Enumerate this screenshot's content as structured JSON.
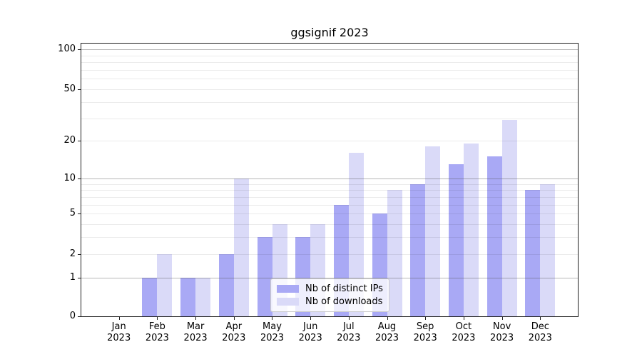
{
  "chart_data": {
    "type": "bar",
    "title": "ggsignif 2023",
    "categories": [
      "Jan 2023",
      "Feb 2023",
      "Mar 2023",
      "Apr 2023",
      "May 2023",
      "Jun 2023",
      "Jul 2023",
      "Aug 2023",
      "Sep 2023",
      "Oct 2023",
      "Nov 2023",
      "Dec 2023"
    ],
    "series": [
      {
        "name": "Nb of distinct IPs",
        "color": "#a9a9f5",
        "values": [
          0,
          1,
          1,
          2,
          3,
          3,
          6,
          5,
          9,
          13,
          15,
          8
        ]
      },
      {
        "name": "Nb of downloads",
        "color": "#dadaf8",
        "values": [
          0,
          2,
          1,
          10,
          4,
          4,
          16,
          8,
          18,
          19,
          29,
          9
        ]
      }
    ],
    "xlabel": "",
    "ylabel": "",
    "yscale": "log1p",
    "ylim": [
      0,
      113
    ],
    "yticks": [
      0,
      1,
      2,
      5,
      10,
      20,
      50,
      100
    ],
    "major_gridlines": [
      1,
      10,
      100
    ],
    "minor_gridlines": [
      2,
      3,
      4,
      5,
      6,
      7,
      8,
      9,
      20,
      30,
      40,
      50,
      60,
      70,
      80,
      90
    ],
    "grid": true,
    "legend_position": "lower-center",
    "colors": {
      "axis": "#1f1f1f",
      "major_grid": "#b5b5b5",
      "minor_grid": "#ebebeb",
      "background": "#ffffff"
    }
  }
}
